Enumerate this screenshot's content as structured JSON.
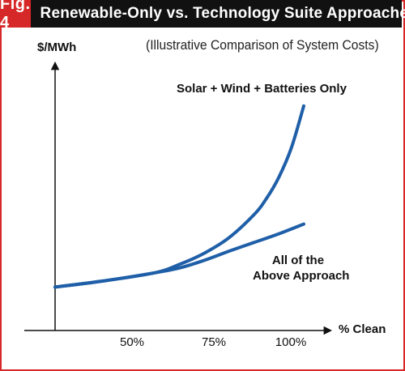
{
  "figure": {
    "label": "Fig. 4",
    "title": "Renewable-Only vs. Technology Suite Approaches",
    "subtitle": "(Illustrative Comparison of System Costs)"
  },
  "colors": {
    "accent": "#d62828",
    "header_bg": "#111111",
    "curve": "#1f5fa8"
  },
  "chart_data": {
    "type": "line",
    "xlabel": "% Clean",
    "ylabel": "$/MWh",
    "x_ticks": [
      "50%",
      "75%",
      "100%"
    ],
    "x_tick_values": [
      50,
      75,
      100
    ],
    "xlim": [
      10,
      130
    ],
    "ylim": [
      0,
      100
    ],
    "grid": false,
    "series": [
      {
        "name": "Solar + Wind + Batteries Only",
        "x": [
          0,
          20,
          40,
          50,
          60,
          70,
          80,
          85,
          90,
          95,
          100
        ],
        "y": [
          17,
          19.5,
          22.6,
          25.9,
          30.3,
          36.4,
          45.4,
          51.7,
          60.1,
          71.5,
          88
        ]
      },
      {
        "name": "All of the Above Approach",
        "x": [
          0,
          20,
          40,
          50,
          60,
          70,
          80,
          90,
          100
        ],
        "y": [
          17,
          19.5,
          22.6,
          24.5,
          27.5,
          31.1,
          34.5,
          37.9,
          41.7
        ]
      }
    ]
  }
}
